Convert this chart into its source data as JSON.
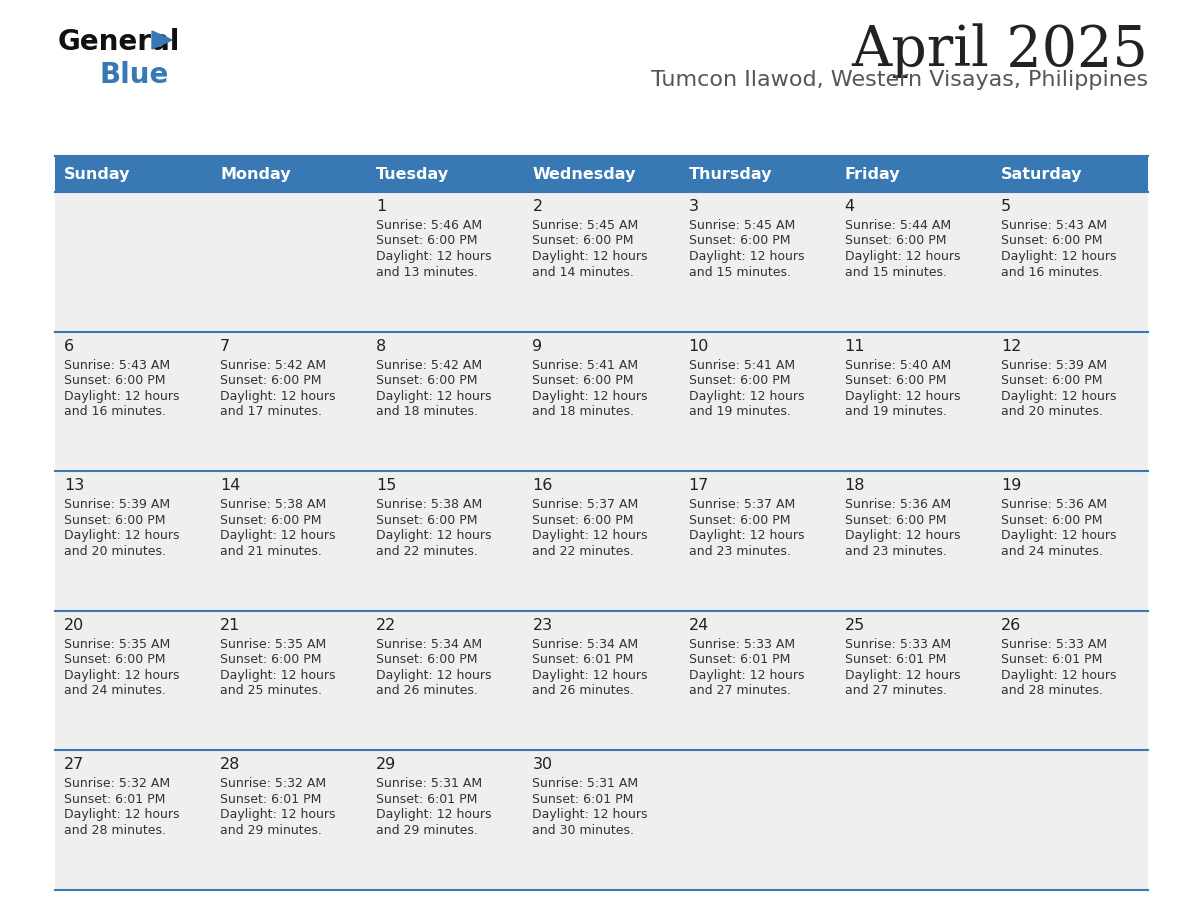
{
  "title": "April 2025",
  "subtitle": "Tumcon Ilawod, Western Visayas, Philippines",
  "header_bg_color": "#3878B4",
  "header_text_color": "#FFFFFF",
  "day_names": [
    "Sunday",
    "Monday",
    "Tuesday",
    "Wednesday",
    "Thursday",
    "Friday",
    "Saturday"
  ],
  "row_bg_color": "#EFEFEF",
  "cell_border_color": "#3878B4",
  "day_num_color": "#222222",
  "cell_text_color": "#333333",
  "title_color": "#222222",
  "subtitle_color": "#555555",
  "calendar": [
    [
      null,
      null,
      {
        "day": 1,
        "sunrise": "5:46 AM",
        "sunset": "6:00 PM",
        "daylight": "12 hours and 13 minutes."
      },
      {
        "day": 2,
        "sunrise": "5:45 AM",
        "sunset": "6:00 PM",
        "daylight": "12 hours and 14 minutes."
      },
      {
        "day": 3,
        "sunrise": "5:45 AM",
        "sunset": "6:00 PM",
        "daylight": "12 hours and 15 minutes."
      },
      {
        "day": 4,
        "sunrise": "5:44 AM",
        "sunset": "6:00 PM",
        "daylight": "12 hours and 15 minutes."
      },
      {
        "day": 5,
        "sunrise": "5:43 AM",
        "sunset": "6:00 PM",
        "daylight": "12 hours and 16 minutes."
      }
    ],
    [
      {
        "day": 6,
        "sunrise": "5:43 AM",
        "sunset": "6:00 PM",
        "daylight": "12 hours and 16 minutes."
      },
      {
        "day": 7,
        "sunrise": "5:42 AM",
        "sunset": "6:00 PM",
        "daylight": "12 hours and 17 minutes."
      },
      {
        "day": 8,
        "sunrise": "5:42 AM",
        "sunset": "6:00 PM",
        "daylight": "12 hours and 18 minutes."
      },
      {
        "day": 9,
        "sunrise": "5:41 AM",
        "sunset": "6:00 PM",
        "daylight": "12 hours and 18 minutes."
      },
      {
        "day": 10,
        "sunrise": "5:41 AM",
        "sunset": "6:00 PM",
        "daylight": "12 hours and 19 minutes."
      },
      {
        "day": 11,
        "sunrise": "5:40 AM",
        "sunset": "6:00 PM",
        "daylight": "12 hours and 19 minutes."
      },
      {
        "day": 12,
        "sunrise": "5:39 AM",
        "sunset": "6:00 PM",
        "daylight": "12 hours and 20 minutes."
      }
    ],
    [
      {
        "day": 13,
        "sunrise": "5:39 AM",
        "sunset": "6:00 PM",
        "daylight": "12 hours and 20 minutes."
      },
      {
        "day": 14,
        "sunrise": "5:38 AM",
        "sunset": "6:00 PM",
        "daylight": "12 hours and 21 minutes."
      },
      {
        "day": 15,
        "sunrise": "5:38 AM",
        "sunset": "6:00 PM",
        "daylight": "12 hours and 22 minutes."
      },
      {
        "day": 16,
        "sunrise": "5:37 AM",
        "sunset": "6:00 PM",
        "daylight": "12 hours and 22 minutes."
      },
      {
        "day": 17,
        "sunrise": "5:37 AM",
        "sunset": "6:00 PM",
        "daylight": "12 hours and 23 minutes."
      },
      {
        "day": 18,
        "sunrise": "5:36 AM",
        "sunset": "6:00 PM",
        "daylight": "12 hours and 23 minutes."
      },
      {
        "day": 19,
        "sunrise": "5:36 AM",
        "sunset": "6:00 PM",
        "daylight": "12 hours and 24 minutes."
      }
    ],
    [
      {
        "day": 20,
        "sunrise": "5:35 AM",
        "sunset": "6:00 PM",
        "daylight": "12 hours and 24 minutes."
      },
      {
        "day": 21,
        "sunrise": "5:35 AM",
        "sunset": "6:00 PM",
        "daylight": "12 hours and 25 minutes."
      },
      {
        "day": 22,
        "sunrise": "5:34 AM",
        "sunset": "6:00 PM",
        "daylight": "12 hours and 26 minutes."
      },
      {
        "day": 23,
        "sunrise": "5:34 AM",
        "sunset": "6:01 PM",
        "daylight": "12 hours and 26 minutes."
      },
      {
        "day": 24,
        "sunrise": "5:33 AM",
        "sunset": "6:01 PM",
        "daylight": "12 hours and 27 minutes."
      },
      {
        "day": 25,
        "sunrise": "5:33 AM",
        "sunset": "6:01 PM",
        "daylight": "12 hours and 27 minutes."
      },
      {
        "day": 26,
        "sunrise": "5:33 AM",
        "sunset": "6:01 PM",
        "daylight": "12 hours and 28 minutes."
      }
    ],
    [
      {
        "day": 27,
        "sunrise": "5:32 AM",
        "sunset": "6:01 PM",
        "daylight": "12 hours and 28 minutes."
      },
      {
        "day": 28,
        "sunrise": "5:32 AM",
        "sunset": "6:01 PM",
        "daylight": "12 hours and 29 minutes."
      },
      {
        "day": 29,
        "sunrise": "5:31 AM",
        "sunset": "6:01 PM",
        "daylight": "12 hours and 29 minutes."
      },
      {
        "day": 30,
        "sunrise": "5:31 AM",
        "sunset": "6:01 PM",
        "daylight": "12 hours and 30 minutes."
      },
      null,
      null,
      null
    ]
  ]
}
